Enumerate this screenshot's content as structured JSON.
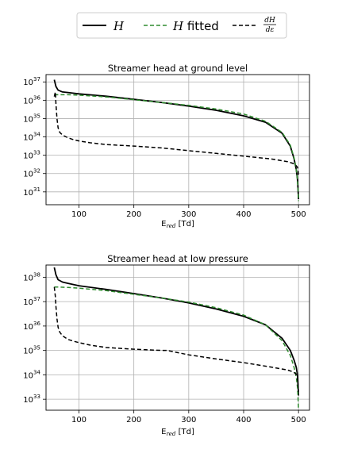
{
  "legend": {
    "entries": [
      {
        "label_var": "H",
        "label_suffix": "",
        "color": "#000000",
        "dash": "solid"
      },
      {
        "label_var": "H",
        "label_suffix": " fitted",
        "color": "#2e8b2e",
        "dash": "dashed"
      },
      {
        "label_num": "dH",
        "label_den": "dε",
        "color": "#000000",
        "dash": "dashed"
      }
    ]
  },
  "chart_data": [
    {
      "type": "line",
      "title": "Streamer head at ground level",
      "xlabel_main": "E",
      "xlabel_sub": "red",
      "xlabel_unit": " [Td]",
      "xlim": [
        40,
        520
      ],
      "ylim_exp": [
        30.3,
        37.4
      ],
      "yscale": "log",
      "grid": true,
      "x_ticks": [
        100,
        200,
        300,
        400,
        500
      ],
      "y_tick_exps": [
        31,
        32,
        33,
        34,
        35,
        36,
        37
      ],
      "series": [
        {
          "name": "H",
          "color": "#000000",
          "dash": "solid",
          "x": [
            55,
            58,
            62,
            70,
            80,
            100,
            150,
            200,
            250,
            300,
            350,
            400,
            440,
            470,
            485,
            492,
            496,
            498,
            499,
            500
          ],
          "y_exp": [
            37.12,
            36.75,
            36.55,
            36.45,
            36.42,
            36.35,
            36.22,
            36.05,
            35.88,
            35.68,
            35.45,
            35.15,
            34.8,
            34.2,
            33.5,
            32.8,
            32.2,
            31.7,
            31.2,
            30.6
          ]
        },
        {
          "name": "H fitted",
          "color": "#2e8b2e",
          "dash": "dashed",
          "x": [
            55,
            60,
            80,
            100,
            150,
            200,
            250,
            300,
            350,
            400,
            440,
            470,
            485,
            492,
            496,
            498,
            499,
            500
          ],
          "y_exp": [
            36.3,
            36.3,
            36.3,
            36.28,
            36.18,
            36.03,
            35.88,
            35.72,
            35.52,
            35.25,
            34.85,
            34.25,
            33.55,
            32.85,
            32.2,
            31.7,
            31.2,
            30.5
          ]
        },
        {
          "name": "dH/dε",
          "color": "#000000",
          "dash": "dashed",
          "x": [
            55,
            57,
            58,
            60,
            62,
            65,
            70,
            80,
            90,
            100,
            120,
            150,
            200,
            250,
            300,
            350,
            400,
            450,
            480,
            490,
            495,
            498,
            499,
            500
          ],
          "y_exp": [
            36.2,
            36.45,
            35.8,
            35.0,
            34.5,
            34.25,
            34.1,
            33.95,
            33.85,
            33.78,
            33.68,
            33.58,
            33.5,
            33.4,
            33.25,
            33.1,
            32.95,
            32.8,
            32.65,
            32.55,
            32.45,
            32.35,
            32.2,
            31.9
          ]
        }
      ]
    },
    {
      "type": "line",
      "title": "Streamer head at low pressure",
      "xlabel_main": "E",
      "xlabel_sub": "red",
      "xlabel_unit": " [Td]",
      "xlim": [
        40,
        520
      ],
      "ylim_exp": [
        32.55,
        38.5
      ],
      "yscale": "log",
      "grid": true,
      "x_ticks": [
        100,
        200,
        300,
        400,
        500
      ],
      "y_tick_exps": [
        33,
        34,
        35,
        36,
        37,
        38
      ],
      "series": [
        {
          "name": "H",
          "color": "#000000",
          "dash": "solid",
          "x": [
            55,
            58,
            62,
            70,
            80,
            100,
            150,
            200,
            250,
            300,
            350,
            400,
            440,
            470,
            485,
            492,
            496,
            498,
            499,
            500
          ],
          "y_exp": [
            38.4,
            38.1,
            37.9,
            37.8,
            37.75,
            37.65,
            37.5,
            37.33,
            37.15,
            36.95,
            36.7,
            36.4,
            36.05,
            35.5,
            35.0,
            34.6,
            34.3,
            34.0,
            33.6,
            33.15
          ]
        },
        {
          "name": "H fitted",
          "color": "#2e8b2e",
          "dash": "dashed",
          "x": [
            55,
            60,
            80,
            100,
            150,
            200,
            250,
            300,
            350,
            400,
            440,
            470,
            485,
            492,
            496,
            498,
            499,
            500
          ],
          "y_exp": [
            37.6,
            37.6,
            37.58,
            37.55,
            37.45,
            37.3,
            37.15,
            36.98,
            36.75,
            36.45,
            36.05,
            35.4,
            34.8,
            34.3,
            33.9,
            33.5,
            33.1,
            32.55
          ]
        },
        {
          "name": "dH/dε",
          "color": "#000000",
          "dash": "dashed",
          "x": [
            55,
            57,
            58,
            60,
            62,
            65,
            70,
            80,
            90,
            100,
            120,
            150,
            200,
            250,
            260,
            300,
            350,
            400,
            450,
            480,
            490,
            495,
            498,
            500
          ],
          "y_exp": [
            37.6,
            37.2,
            36.8,
            36.3,
            35.95,
            35.75,
            35.6,
            35.45,
            35.38,
            35.32,
            35.22,
            35.12,
            35.05,
            35.0,
            35.0,
            34.82,
            34.65,
            34.5,
            34.32,
            34.2,
            34.12,
            34.05,
            33.9,
            33.3
          ]
        }
      ]
    }
  ]
}
